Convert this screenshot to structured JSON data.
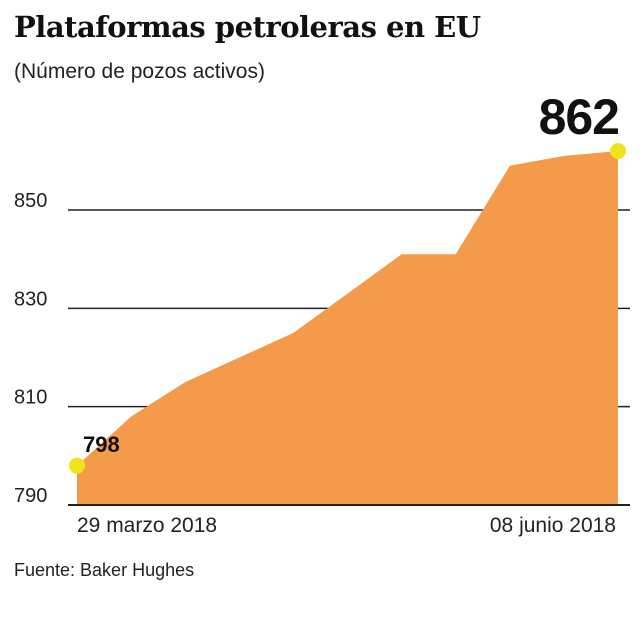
{
  "title": "Plataformas petroleras en EU",
  "subtitle": "(Número de pozos activos)",
  "source": "Fuente: Baker Hughes",
  "chart_data": {
    "type": "area",
    "title": "Plataformas petroleras en EU",
    "subtitle": "(Número de pozos activos)",
    "xlabel": "",
    "ylabel": "",
    "x_start_label": "29 marzo 2018",
    "x_end_label": "08 junio 2018",
    "x": [
      0,
      1,
      2,
      3,
      4,
      5,
      6,
      7,
      8,
      9,
      10
    ],
    "values": [
      798,
      808,
      815,
      820,
      825,
      833,
      841,
      841,
      859,
      861,
      862
    ],
    "ylim": [
      790,
      862
    ],
    "yticks": [
      790,
      810,
      830,
      850
    ],
    "grid": true,
    "annotations": [
      {
        "label": "798",
        "index": 0
      },
      {
        "label": "862",
        "index": 10
      }
    ],
    "colors": {
      "area": "#f39a4b",
      "grid": "#222222",
      "marker": "#f2e21a",
      "text": "#111111"
    }
  }
}
